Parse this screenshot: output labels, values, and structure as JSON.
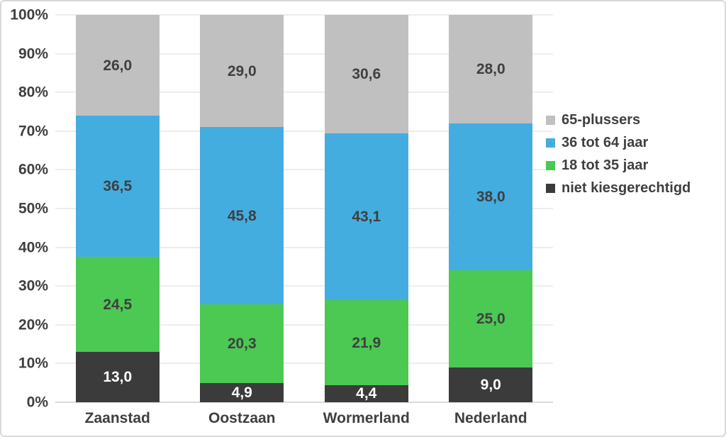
{
  "chart_data": {
    "type": "bar",
    "stacked": true,
    "title": "",
    "xlabel": "",
    "ylabel": "",
    "ylim": [
      0,
      100
    ],
    "grid": true,
    "legend_position": "right",
    "value_decimal_separator": ",",
    "categories": [
      "Zaanstad",
      "Oostzaan",
      "Wormerland",
      "Nederland"
    ],
    "series": [
      {
        "name": "niet kiesgerechtigd",
        "color": "#3B3B3B",
        "label_color": "#FFFFFF",
        "values": [
          13.0,
          4.9,
          4.4,
          9.0
        ],
        "labels": [
          "13,0",
          "4,9",
          "4,4",
          "9,0"
        ]
      },
      {
        "name": "18 tot 35 jaar",
        "color": "#4BC953",
        "label_color": "#3F3F3F",
        "values": [
          24.5,
          20.3,
          21.9,
          25.0
        ],
        "labels": [
          "24,5",
          "20,3",
          "21,9",
          "25,0"
        ]
      },
      {
        "name": "36 tot 64 jaar",
        "color": "#44ADE0",
        "label_color": "#3F3F3F",
        "values": [
          36.5,
          45.8,
          43.1,
          38.0
        ],
        "labels": [
          "36,5",
          "45,8",
          "43,1",
          "38,0"
        ]
      },
      {
        "name": "65-plussers",
        "color": "#C0C0C0",
        "label_color": "#3F3F3F",
        "values": [
          26.0,
          29.0,
          30.6,
          28.0
        ],
        "labels": [
          "26,0",
          "29,0",
          "30,6",
          "28,0"
        ]
      }
    ],
    "legend": [
      "65-plussers",
      "36 tot 64 jaar",
      "18 tot 35 jaar",
      "niet kiesgerechtigd"
    ],
    "yticks": [
      "0%",
      "10%",
      "20%",
      "30%",
      "40%",
      "50%",
      "60%",
      "70%",
      "80%",
      "90%",
      "100%"
    ],
    "colors": {
      "grid_line": "#EDEDED",
      "baseline": "#D9D9D9",
      "axis_text": "#3F3F3F",
      "chart_border": "#D8D8D8",
      "background": "#FFFFFF"
    }
  }
}
